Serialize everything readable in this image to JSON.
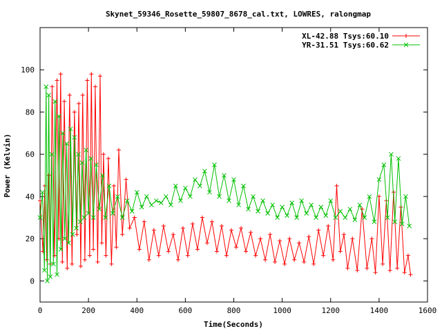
{
  "chart_data": {
    "type": "line",
    "title": "Skynet_59346_Rosette_59807_8678_cal.txt, LOWRES, ralongmap",
    "xlabel": "Time(Seconds)",
    "ylabel": "Power (Kelvin)",
    "xlim": [
      0,
      1600
    ],
    "ylim": [
      -10,
      120
    ],
    "x_ticks": [
      0,
      200,
      400,
      600,
      800,
      1000,
      1200,
      1400,
      1600
    ],
    "y_ticks": [
      0,
      20,
      40,
      60,
      80,
      100
    ],
    "x_tick_labels": [
      "0",
      "200",
      "400",
      "600",
      "800",
      "1000",
      "1200",
      "1400",
      "1600"
    ],
    "y_tick_labels": [
      "0",
      "20",
      "40",
      "60",
      "80",
      "100"
    ],
    "grid": false,
    "legend_position": "top-right",
    "series": [
      {
        "name": "XL-42.88 Tsys:60.10",
        "color": "#ff0000",
        "marker": "plus",
        "x": [
          0,
          12,
          20,
          28,
          35,
          42,
          50,
          60,
          70,
          78,
          85,
          92,
          100,
          112,
          122,
          132,
          142,
          152,
          160,
          168,
          176,
          185,
          195,
          205,
          212,
          220,
          228,
          238,
          248,
          255,
          262,
          272,
          282,
          295,
          305,
          315,
          325,
          340,
          355,
          370,
          390,
          410,
          430,
          450,
          470,
          490,
          510,
          530,
          550,
          570,
          590,
          610,
          630,
          650,
          670,
          690,
          710,
          730,
          750,
          770,
          790,
          810,
          830,
          850,
          870,
          890,
          910,
          930,
          950,
          970,
          990,
          1010,
          1030,
          1050,
          1070,
          1090,
          1110,
          1130,
          1150,
          1170,
          1190,
          1210,
          1225,
          1240,
          1255,
          1270,
          1290,
          1310,
          1330,
          1350,
          1370,
          1385,
          1400,
          1415,
          1430,
          1445,
          1460,
          1475,
          1490,
          1505,
          1520,
          1530
        ],
        "y": [
          38,
          14,
          45,
          10,
          50,
          8,
          92,
          12,
          95,
          20,
          98,
          9,
          85,
          6,
          88,
          8,
          80,
          22,
          84,
          7,
          88,
          10,
          95,
          12,
          98,
          15,
          92,
          9,
          97,
          18,
          60,
          12,
          58,
          8,
          45,
          16,
          62,
          22,
          48,
          25,
          30,
          15,
          28,
          10,
          24,
          12,
          26,
          14,
          22,
          10,
          25,
          12,
          27,
          15,
          30,
          18,
          28,
          14,
          26,
          12,
          24,
          16,
          25,
          14,
          23,
          12,
          20,
          10,
          22,
          9,
          19,
          8,
          20,
          10,
          18,
          9,
          21,
          8,
          24,
          12,
          26,
          10,
          45,
          14,
          22,
          6,
          20,
          5,
          34,
          6,
          20,
          4,
          40,
          8,
          38,
          5,
          42,
          6,
          35,
          4,
          12,
          3
        ]
      },
      {
        "name": "YR-31.51 Tsys:60.62",
        "color": "#00c000",
        "marker": "x",
        "x": [
          0,
          10,
          18,
          25,
          30,
          36,
          42,
          48,
          55,
          62,
          70,
          78,
          86,
          94,
          102,
          110,
          118,
          126,
          134,
          142,
          150,
          158,
          166,
          174,
          182,
          190,
          200,
          210,
          220,
          232,
          245,
          258,
          270,
          285,
          300,
          320,
          340,
          360,
          380,
          400,
          420,
          440,
          460,
          480,
          500,
          520,
          540,
          560,
          580,
          600,
          620,
          640,
          660,
          680,
          700,
          720,
          740,
          760,
          780,
          800,
          820,
          840,
          860,
          880,
          900,
          920,
          940,
          960,
          980,
          1000,
          1020,
          1040,
          1060,
          1080,
          1100,
          1120,
          1140,
          1160,
          1180,
          1200,
          1220,
          1240,
          1260,
          1280,
          1300,
          1320,
          1340,
          1360,
          1380,
          1400,
          1420,
          1435,
          1450,
          1465,
          1480,
          1495,
          1510,
          1525
        ],
        "y": [
          30,
          42,
          5,
          92,
          0,
          88,
          2,
          60,
          8,
          85,
          3,
          78,
          15,
          70,
          20,
          65,
          18,
          72,
          22,
          68,
          25,
          60,
          28,
          56,
          30,
          62,
          32,
          58,
          30,
          55,
          34,
          50,
          30,
          45,
          32,
          40,
          30,
          38,
          33,
          42,
          35,
          40,
          36,
          38,
          37,
          40,
          36,
          45,
          38,
          44,
          40,
          48,
          45,
          52,
          42,
          55,
          40,
          50,
          38,
          48,
          36,
          45,
          34,
          40,
          33,
          38,
          32,
          36,
          30,
          35,
          31,
          37,
          30,
          38,
          32,
          36,
          30,
          35,
          31,
          38,
          30,
          33,
          30,
          34,
          29,
          36,
          30,
          40,
          28,
          48,
          55,
          30,
          60,
          28,
          58,
          27,
          40,
          26
        ]
      }
    ]
  }
}
